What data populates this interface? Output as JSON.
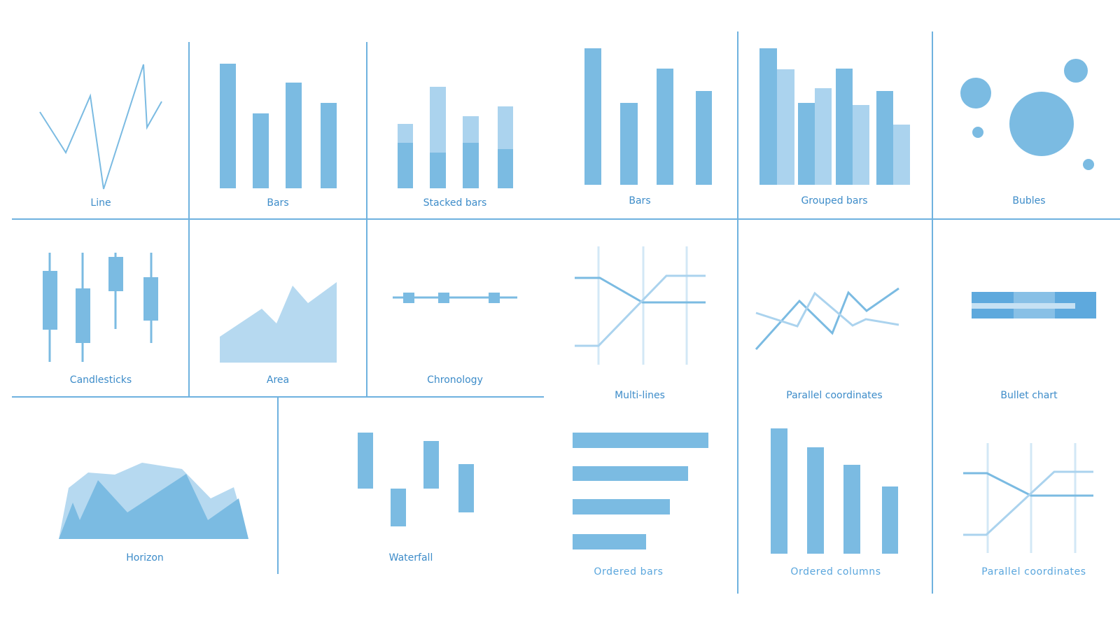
{
  "palette": {
    "primary": "#7bbbe2",
    "light": "#abd3ee",
    "lighter": "#cce4f4",
    "rule": "#6fb2df",
    "caption": "#3d8cc9",
    "bullet_band_1": "#5ea9dd",
    "bullet_band_2": "#88c0e6",
    "bullet_bar": "#c6e1f3"
  },
  "captions": {
    "line": "Line",
    "bars_1": "Bars",
    "stacked_bars": "Stacked bars",
    "bars_2": "Bars",
    "grouped_bars": "Grouped bars",
    "bubles": "Bubles",
    "candlesticks": "Candlesticks",
    "area": "Area",
    "chronology": "Chronology",
    "multi_lines": "Multi-lines",
    "parallel_coordinates_1": "Parallel coordinates",
    "bullet_chart": "Bullet chart",
    "horizon": "Horizon",
    "waterfall": "Waterfall",
    "ordered_bars": "Ordered bars",
    "ordered_columns": "Ordered columns",
    "parallel_coordinates_2": "Parallel coordinates"
  }
}
